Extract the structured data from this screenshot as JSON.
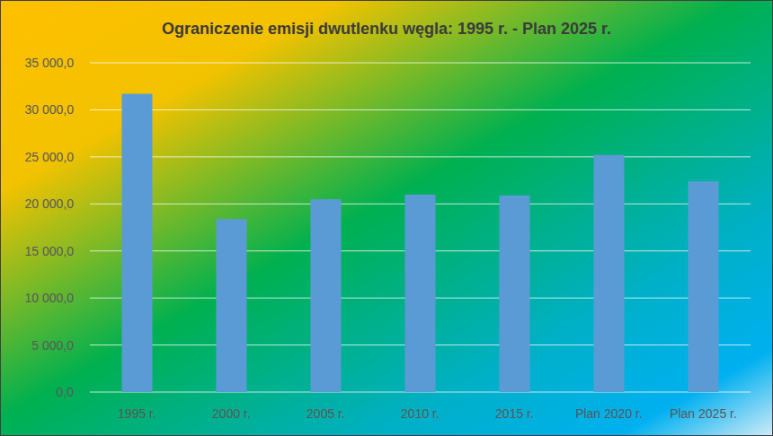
{
  "chart_data": {
    "type": "bar",
    "title": "Ograniczenie emisji dwutlenku węgla: 1995 r. - Plan 2025 r.",
    "categories": [
      "1995 r.",
      "2000 r.",
      "2005 r.",
      "2010 r.",
      "2015 r.",
      "Plan 2020 r.",
      "Plan 2025 r."
    ],
    "values": [
      31700,
      18400,
      20500,
      21000,
      20900,
      25200,
      22400
    ],
    "color": "#5b9bd5",
    "ylim": [
      0,
      35000
    ],
    "yticks": [
      {
        "value": 0,
        "label": "0,0"
      },
      {
        "value": 5000,
        "label": "5 000,0"
      },
      {
        "value": 10000,
        "label": "10 000,0"
      },
      {
        "value": 15000,
        "label": "15 000,0"
      },
      {
        "value": 20000,
        "label": "20 000,0"
      },
      {
        "value": 25000,
        "label": "25 000,0"
      },
      {
        "value": 30000,
        "label": "30 000,0"
      },
      {
        "value": 35000,
        "label": "35 000,0"
      }
    ],
    "grid": true
  }
}
